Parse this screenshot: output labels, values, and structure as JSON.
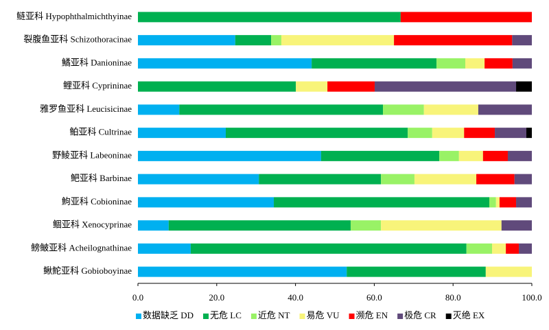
{
  "chart_data": {
    "type": "stacked-bar-horizontal",
    "categories": [
      "鲢亚科 Hypophthalmichthyinae",
      "裂腹鱼亚科 Schizothoracinae",
      "鱊亚科 Danioninae",
      "鲤亚科 Cyprininae",
      "雅罗鱼亚科 Leucisicinae",
      "鲌亚科 Cultrinae",
      "野鲮亚科 Labeoninae",
      "鲃亚科 Barbinae",
      "鮈亚科 Cobioninae",
      "鲴亚科 Xenocyprinae",
      "鳑鲏亚科 Acheilognathinae",
      "鳅鮀亚科 Gobioboyinae"
    ],
    "series": [
      {
        "name": "数据缺乏 DD",
        "color": "#00b0f0",
        "values": [
          0,
          24.7,
          44.1,
          0,
          10.5,
          22.3,
          46.5,
          30.7,
          34.5,
          7.8,
          13.4,
          53.0
        ]
      },
      {
        "name": "无危 LC",
        "color": "#00b050",
        "values": [
          66.7,
          9.1,
          31.7,
          40.1,
          51.7,
          46.2,
          30.0,
          31.0,
          54.7,
          46.2,
          70.0,
          35.3
        ]
      },
      {
        "name": "近危 NT",
        "color": "#99f266",
        "values": [
          0,
          2.6,
          7.3,
          0,
          10.4,
          6.2,
          5.0,
          8.5,
          1.7,
          7.7,
          6.5,
          0
        ]
      },
      {
        "name": "易危 VU",
        "color": "#f8f47a",
        "values": [
          0,
          28.6,
          4.9,
          8.0,
          13.8,
          8.1,
          6.1,
          15.7,
          0.9,
          30.6,
          3.5,
          11.7
        ]
      },
      {
        "name": "濒危 EN",
        "color": "#ff0000",
        "values": [
          33.3,
          30.0,
          7.1,
          12.0,
          0,
          7.8,
          6.3,
          9.7,
          4.2,
          0,
          3.3,
          0
        ]
      },
      {
        "name": "极危 CR",
        "color": "#604a7b",
        "values": [
          0,
          5.0,
          4.9,
          35.9,
          13.6,
          8.0,
          6.1,
          4.4,
          4.0,
          7.7,
          3.3,
          0
        ]
      },
      {
        "name": "灭绝 EX",
        "color": "#000000",
        "values": [
          0,
          0,
          0,
          4.0,
          0,
          1.4,
          0,
          0,
          0,
          0,
          0,
          0
        ]
      }
    ],
    "xlim": [
      0,
      100
    ],
    "xticks": [
      {
        "value": 0,
        "label": "0.0"
      },
      {
        "value": 20,
        "label": "20.0"
      },
      {
        "value": 40,
        "label": "40.0"
      },
      {
        "value": 60,
        "label": "60.0"
      },
      {
        "value": 80,
        "label": "80.0"
      },
      {
        "value": 100,
        "label": "100.0"
      }
    ],
    "legend": "bottom"
  }
}
